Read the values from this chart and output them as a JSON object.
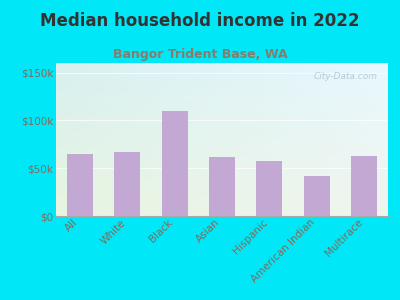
{
  "title": "Median household income in 2022",
  "subtitle": "Bangor Trident Base, WA",
  "categories": [
    "All",
    "White",
    "Black",
    "Asian",
    "Hispanic",
    "American Indian",
    "Multirace"
  ],
  "values": [
    65000,
    67000,
    110000,
    62000,
    57000,
    42000,
    63000
  ],
  "bar_color": "#c4a8d4",
  "background_outer": "#00e8f8",
  "title_color": "#333333",
  "subtitle_color": "#8a7a6a",
  "tick_label_color": "#886655",
  "ytick_labels": [
    "$0",
    "$50k",
    "$100k",
    "$150k"
  ],
  "ytick_values": [
    0,
    50000,
    100000,
    150000
  ],
  "ylim": [
    0,
    160000
  ],
  "watermark": "City-Data.com",
  "title_fontsize": 12,
  "subtitle_fontsize": 9,
  "tick_fontsize": 7.5
}
